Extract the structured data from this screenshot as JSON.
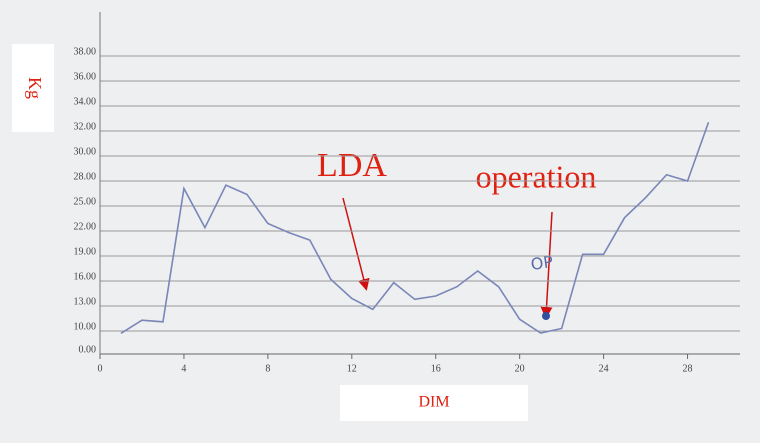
{
  "chart_data": {
    "type": "line",
    "y_label": "Kg",
    "x_label": "DIM",
    "annotations": [
      "LDA",
      "operation",
      "OP"
    ],
    "x": [
      1,
      2,
      3,
      4,
      5,
      6,
      7,
      8,
      9,
      10,
      11,
      12,
      13,
      14,
      15,
      16,
      17,
      18,
      19,
      20,
      21,
      22,
      23,
      24,
      25,
      26,
      27,
      28,
      29
    ],
    "series": [
      {
        "color": "#7a86b8",
        "values": [
          9.0,
          11.3,
          11.1,
          27.1,
          22.4,
          27.5,
          26.4,
          22.9,
          21.8,
          20.9,
          16.2,
          13.9,
          12.6,
          15.8,
          13.8,
          14.2,
          15.3,
          17.2,
          15.3,
          11.4,
          9.1,
          10.3,
          19.2,
          19.2,
          23.6,
          26.0,
          28.5,
          28.0,
          32.7
        ]
      }
    ],
    "xlim": [
      0,
      30.5
    ],
    "xticks": [
      0,
      4,
      8,
      12,
      16,
      20,
      24,
      28
    ],
    "ylim": [
      0,
      38
    ],
    "yticks": [
      {
        "value": 0,
        "label": "0.00"
      },
      {
        "value": 10,
        "label": "10.00"
      },
      {
        "value": 13,
        "label": "13.00"
      },
      {
        "value": 16,
        "label": "16.00"
      },
      {
        "value": 19,
        "label": "19.00"
      },
      {
        "value": 22,
        "label": "22.00"
      },
      {
        "value": 25,
        "label": "25.00"
      },
      {
        "value": 28,
        "label": "28.00"
      },
      {
        "value": 30,
        "label": "30.00"
      },
      {
        "value": 32,
        "label": "32.00"
      },
      {
        "value": 34,
        "label": "34.00"
      },
      {
        "value": 36,
        "label": "36.00"
      },
      {
        "value": 38,
        "label": "38.00"
      }
    ],
    "grid": true,
    "annotation_color": "#e02010"
  }
}
